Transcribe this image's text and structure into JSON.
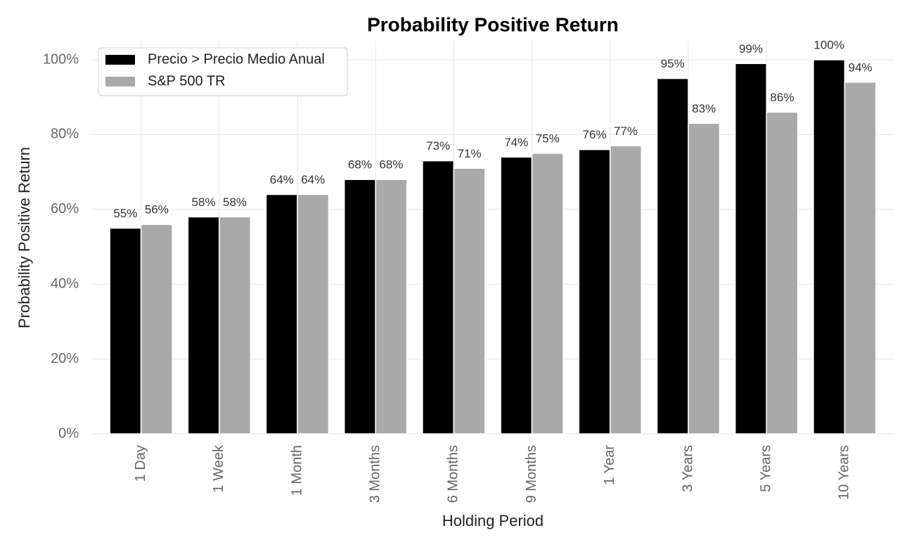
{
  "chart_data": {
    "type": "bar",
    "title": "Probability Positive Return",
    "x_label": "Holding Period",
    "y_label": "Probability Positive Return",
    "categories": [
      "1 Day",
      "1 Week",
      "1 Month",
      "3 Months",
      "6 Months",
      "9 Months",
      "1 Year",
      "3 Years",
      "5 Years",
      "10 Years"
    ],
    "series": [
      {
        "name": "Precio > Precio Medio Anual",
        "color": "#000000",
        "values": [
          55,
          58,
          64,
          68,
          73,
          74,
          76,
          95,
          99,
          100
        ],
        "value_labels": [
          "55%",
          "58%",
          "64%",
          "68%",
          "73%",
          "74%",
          "76%",
          "95%",
          "99%",
          "100%"
        ]
      },
      {
        "name": "S&P 500 TR",
        "color": "#a9a9a9",
        "values": [
          56,
          58,
          64,
          68,
          71,
          75,
          77,
          83,
          86,
          94
        ],
        "value_labels": [
          "56%",
          "58%",
          "64%",
          "68%",
          "71%",
          "75%",
          "77%",
          "83%",
          "86%",
          "94%"
        ]
      }
    ],
    "ylim": [
      0,
      105
    ],
    "yticks": [
      {
        "value": 0,
        "label": "0%"
      },
      {
        "value": 20,
        "label": "20%"
      },
      {
        "value": 40,
        "label": "40%"
      },
      {
        "value": 60,
        "label": "60%"
      },
      {
        "value": 80,
        "label": "80%"
      },
      {
        "value": 100,
        "label": "100%"
      }
    ],
    "grid": true,
    "legend": "upper left"
  }
}
